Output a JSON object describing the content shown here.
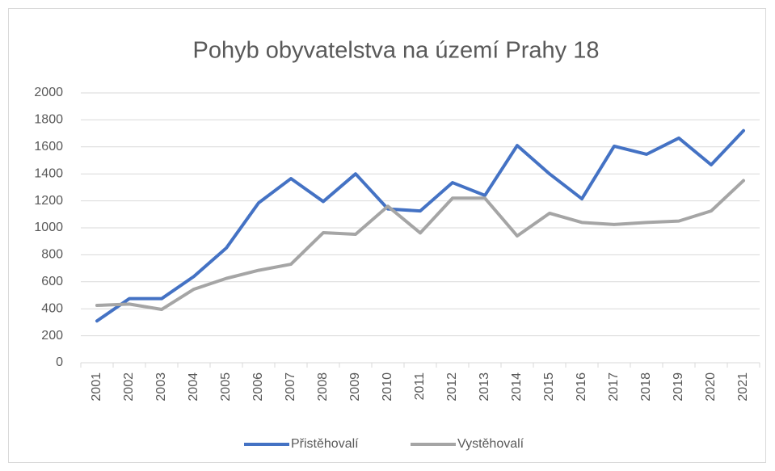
{
  "chart_data": {
    "type": "line",
    "title": "Pohyb obyvatelstva na území Prahy 18",
    "categories": [
      "2001",
      "2002",
      "2003",
      "2004",
      "2005",
      "2006",
      "2007",
      "2008",
      "2009",
      "2010",
      "2011",
      "2012",
      "2013",
      "2014",
      "2015",
      "2016",
      "2017",
      "2018",
      "2019",
      "2020",
      "2021"
    ],
    "series": [
      {
        "name": "Přistěhovalí",
        "color": "#4472c4",
        "values": [
          310,
          475,
          475,
          640,
          850,
          1185,
          1365,
          1195,
          1400,
          1140,
          1125,
          1335,
          1240,
          1610,
          1400,
          1215,
          1605,
          1545,
          1665,
          1467,
          1720
        ]
      },
      {
        "name": "Vystěhovalí",
        "color": "#a5a5a5",
        "values": [
          425,
          435,
          395,
          545,
          625,
          685,
          730,
          964,
          952,
          1160,
          962,
          1220,
          1220,
          940,
          1108,
          1040,
          1025,
          1040,
          1050,
          1125,
          1350
        ]
      }
    ],
    "ylim": [
      0,
      2000
    ],
    "yticks": [
      0,
      200,
      400,
      600,
      800,
      1000,
      1200,
      1400,
      1600,
      1800,
      2000
    ],
    "grid": true,
    "legend": "bottom"
  }
}
